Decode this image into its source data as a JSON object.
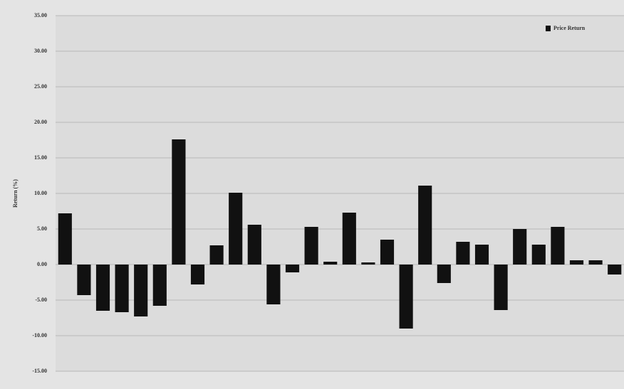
{
  "chart_data": {
    "type": "bar",
    "y_label": "Return (%)",
    "series": [
      {
        "name": "Price Return",
        "color": "#111111",
        "values": [
          7.2,
          -4.3,
          -6.5,
          -6.7,
          -7.3,
          -5.8,
          17.6,
          -2.8,
          2.7,
          10.1,
          5.6,
          -5.6,
          -1.1,
          5.3,
          0.4,
          7.3,
          0.3,
          3.5,
          -9.0,
          11.1,
          -2.6,
          3.2,
          2.8,
          -6.4,
          5.0,
          2.8,
          5.3,
          0.6,
          0.6,
          -1.4
        ]
      }
    ],
    "ylim": [
      -15,
      35
    ],
    "yticks": [
      {
        "value": -15,
        "label": "-15.00"
      },
      {
        "value": -10,
        "label": "-10.00"
      },
      {
        "value": -5,
        "label": "-5.00"
      },
      {
        "value": 0,
        "label": "0.00"
      },
      {
        "value": 5,
        "label": "5.00"
      },
      {
        "value": 10,
        "label": "10.00"
      },
      {
        "value": 15,
        "label": "15.00"
      },
      {
        "value": 20,
        "label": "20.00"
      },
      {
        "value": 25,
        "label": "25.00"
      },
      {
        "value": 30,
        "label": "30.00"
      },
      {
        "value": 35,
        "label": "35.00"
      }
    ],
    "grid": true,
    "legend": "top-right"
  }
}
